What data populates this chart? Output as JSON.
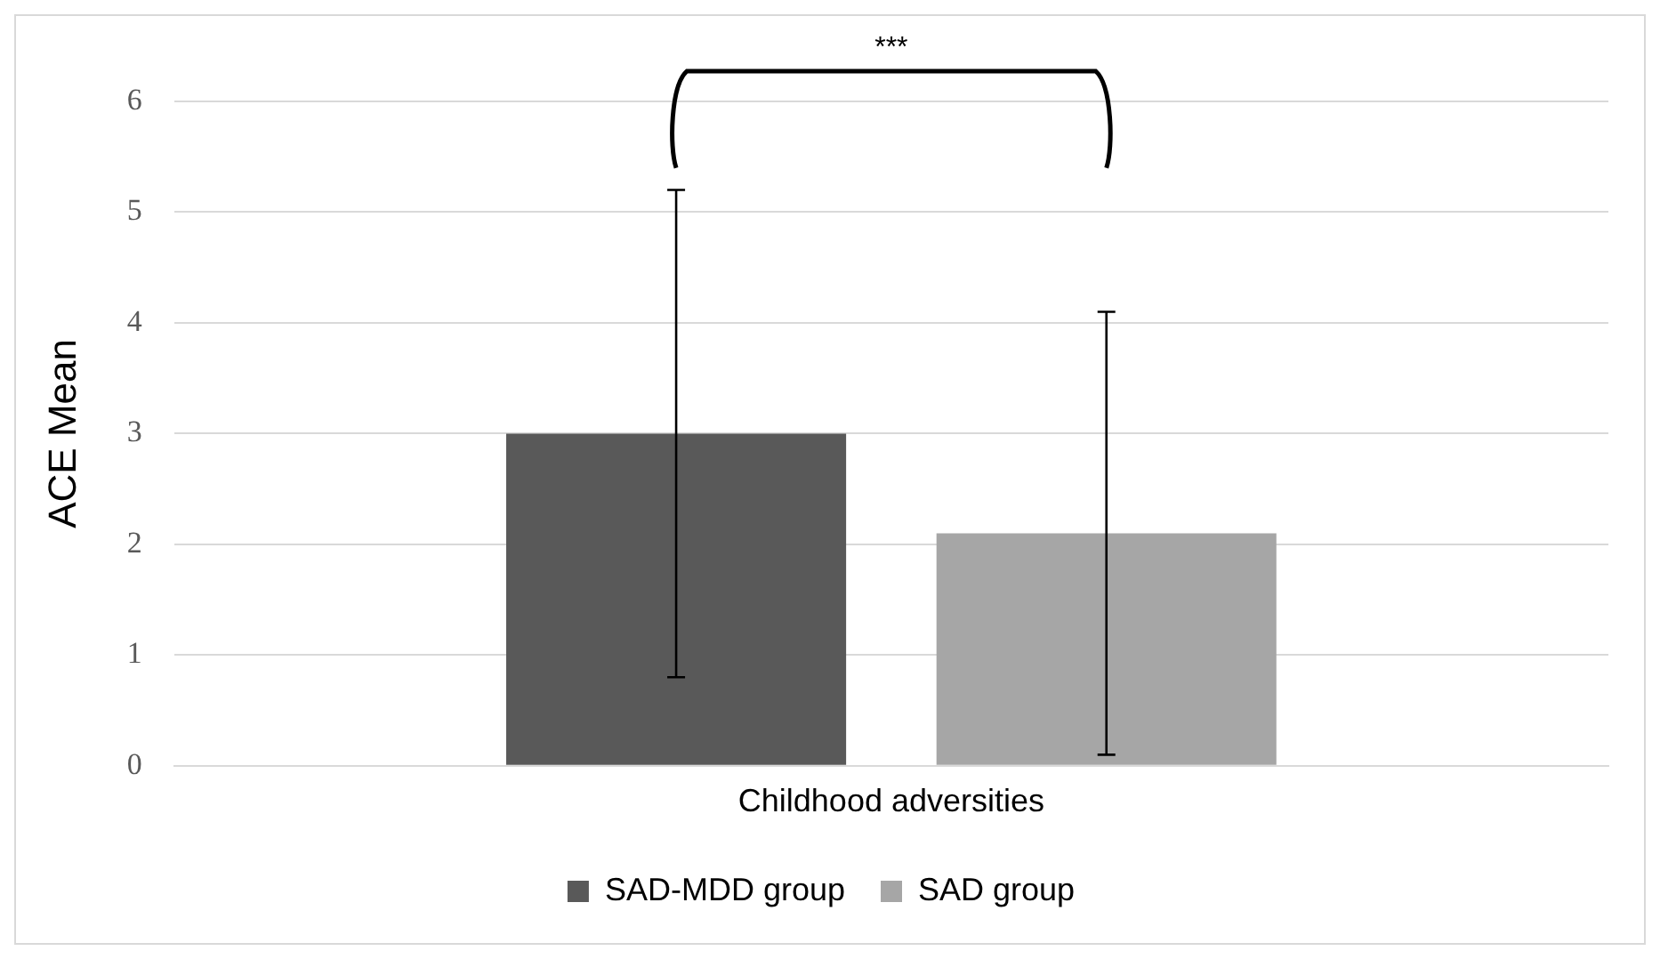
{
  "chart_data": {
    "type": "bar",
    "categories": [
      "Childhood adversities"
    ],
    "ylabel": "ACE Mean",
    "ylim": [
      0,
      6
    ],
    "yticks": [
      0,
      1,
      2,
      3,
      4,
      5,
      6
    ],
    "grid": "y",
    "legend": "bottom",
    "series": [
      {
        "name": "SAD-MDD group",
        "color": "#595959",
        "values": [
          3.0
        ],
        "errors": [
          [
            0.8,
            5.2
          ]
        ]
      },
      {
        "name": "SAD group",
        "color": "#a6a6a6",
        "values": [
          2.1
        ],
        "errors": [
          [
            0.1,
            4.1
          ]
        ]
      }
    ],
    "annotations": [
      "***"
    ]
  }
}
